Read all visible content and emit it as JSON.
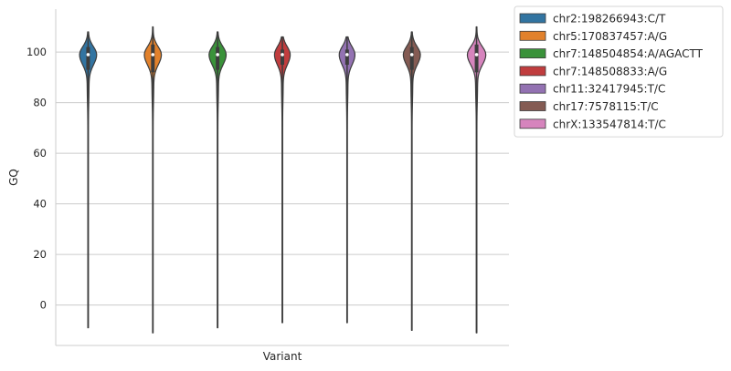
{
  "chart_data": {
    "type": "violin",
    "title": "",
    "xlabel": "Variant",
    "ylabel": "GQ",
    "ylim": [
      -16,
      117
    ],
    "yticks": [
      0,
      20,
      40,
      60,
      80,
      100
    ],
    "grid": "horizontal",
    "legend_position": "outside-top-right",
    "series": [
      {
        "name": "chr2:198266943:C/T",
        "color": "#3274a1",
        "min": -9,
        "max": 108,
        "median": 99,
        "q1": 93,
        "q3": 102,
        "peak_width": 0.06
      },
      {
        "name": "chr5:170837457:A/G",
        "color": "#e1812c",
        "min": -11,
        "max": 110,
        "median": 99,
        "q1": 92,
        "q3": 103,
        "peak_width": 0.06
      },
      {
        "name": "chr7:148504854:A/AGACTT",
        "color": "#3a923a",
        "min": -9,
        "max": 108,
        "median": 99,
        "q1": 93,
        "q3": 102,
        "peak_width": 0.06
      },
      {
        "name": "chr7:148508833:A/G",
        "color": "#c03d3e",
        "min": -7,
        "max": 106,
        "median": 99,
        "q1": 95,
        "q3": 101,
        "peak_width": 0.055
      },
      {
        "name": "chr11:32417945:T/C",
        "color": "#9372b2",
        "min": -7,
        "max": 106,
        "median": 99,
        "q1": 95,
        "q3": 101,
        "peak_width": 0.055
      },
      {
        "name": "chr17:7578115:T/C",
        "color": "#845b53",
        "min": -10,
        "max": 108,
        "median": 99,
        "q1": 93,
        "q3": 102,
        "peak_width": 0.06
      },
      {
        "name": "chrX:133547814:T/C",
        "color": "#d684bd",
        "min": -11,
        "max": 110,
        "median": 99,
        "q1": 92,
        "q3": 103,
        "peak_width": 0.065
      }
    ]
  }
}
